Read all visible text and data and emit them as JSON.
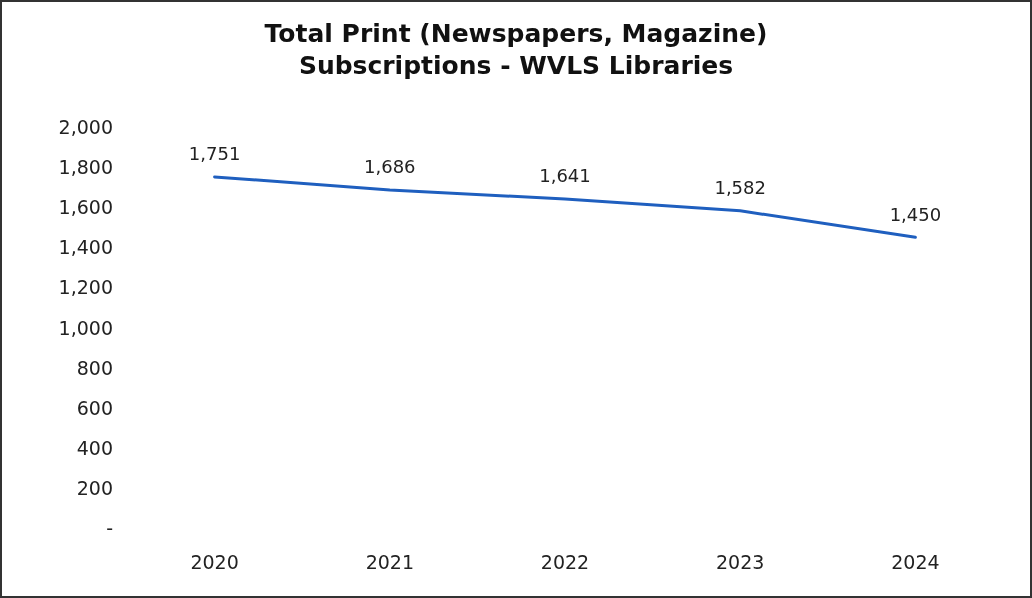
{
  "chart_data": {
    "type": "line",
    "title": "Total Print (Newspapers, Magazine)\nSubscriptions - WVLS Libraries",
    "categories": [
      "2020",
      "2021",
      "2022",
      "2023",
      "2024"
    ],
    "series": [
      {
        "color": "#1f5fbf",
        "values": [
          1751,
          1686,
          1641,
          1582,
          1450
        ],
        "value_labels": [
          "1,751",
          "1,686",
          "1,641",
          "1,582",
          "1,450"
        ]
      }
    ],
    "ylim": [
      0,
      2000
    ],
    "yticks": [
      {
        "value": 0,
        "label": "-"
      },
      {
        "value": 200,
        "label": "200"
      },
      {
        "value": 400,
        "label": "400"
      },
      {
        "value": 600,
        "label": "600"
      },
      {
        "value": 800,
        "label": "800"
      },
      {
        "value": 1000,
        "label": "1,000"
      },
      {
        "value": 1200,
        "label": "1,200"
      },
      {
        "value": 1400,
        "label": "1,400"
      },
      {
        "value": 1600,
        "label": "1,600"
      },
      {
        "value": 1800,
        "label": "1,800"
      },
      {
        "value": 2000,
        "label": "2,000"
      }
    ],
    "grid": false,
    "marker": "none",
    "line_style": "solid"
  }
}
